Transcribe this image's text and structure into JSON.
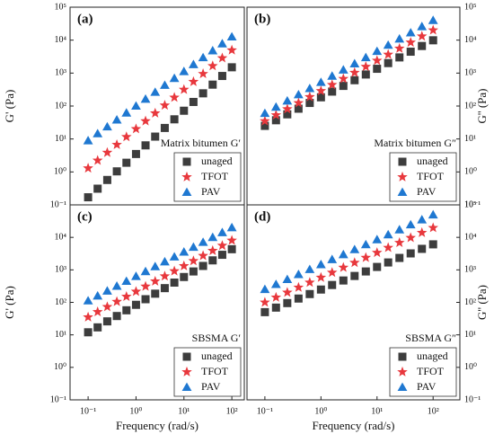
{
  "chart_data": [
    {
      "type": "scatter",
      "panel_label": "(a)",
      "annotation": "Matrix bitumen G′",
      "ylabel": "G' (Pa)",
      "yaxis_side": "left",
      "log_x": true,
      "log_y": true,
      "legend": "lower right",
      "x": [
        0.1,
        0.158,
        0.251,
        0.398,
        0.631,
        1,
        1.58,
        2.51,
        3.98,
        6.31,
        10,
        15.8,
        25.1,
        39.8,
        63.1,
        100
      ],
      "xlim": [
        0.042,
        182
      ],
      "ylim": [
        0.1,
        100000
      ],
      "yticks": [
        {
          "value": 0.1,
          "label": "10⁻¹"
        },
        {
          "value": 1,
          "label": "10⁰"
        },
        {
          "value": 10,
          "label": "10¹"
        },
        {
          "value": 100,
          "label": "10²"
        },
        {
          "value": 1000,
          "label": "10³"
        },
        {
          "value": 10000,
          "label": "10⁴"
        },
        {
          "value": 100000,
          "label": "10⁵"
        }
      ],
      "series": [
        {
          "name": "unaged",
          "color": "#3d3d3d",
          "marker": "square",
          "values": [
            0.17,
            0.31,
            0.57,
            1.04,
            1.9,
            3.5,
            6.4,
            11.8,
            21.6,
            39.5,
            72,
            133,
            243,
            446,
            817,
            1500
          ]
        },
        {
          "name": "TFOT",
          "color": "#e8383d",
          "marker": "star",
          "values": [
            1.3,
            2.23,
            3.87,
            6.71,
            11.6,
            20.2,
            35,
            60.7,
            105,
            182,
            316,
            548,
            951,
            1650,
            2860,
            4950
          ]
        },
        {
          "name": "PAV",
          "color": "#1f78d1",
          "marker": "triangle",
          "values": [
            8.9,
            14.5,
            23.4,
            38,
            61.7,
            100,
            162,
            263,
            427,
            692,
            1120,
            1820,
            2950,
            4790,
            7760,
            12600
          ]
        }
      ]
    },
    {
      "type": "scatter",
      "panel_label": "(b)",
      "annotation": "Matrix bitumen G″",
      "ylabel": "G'' (Pa)",
      "yaxis_side": "right",
      "log_x": true,
      "log_y": true,
      "legend": "lower right",
      "x": [
        0.1,
        0.158,
        0.251,
        0.398,
        0.631,
        1,
        1.58,
        2.51,
        3.98,
        6.31,
        10,
        15.8,
        25.1,
        39.8,
        63.1,
        100
      ],
      "xlim": [
        0.048,
        300
      ],
      "ylim": [
        0.1,
        100000
      ],
      "yticks": [
        {
          "value": 0.1,
          "label": "10⁻¹"
        },
        {
          "value": 1,
          "label": "10⁰"
        },
        {
          "value": 10,
          "label": "10¹"
        },
        {
          "value": 100,
          "label": "10²"
        },
        {
          "value": 1000,
          "label": "10³"
        },
        {
          "value": 10000,
          "label": "10⁴"
        },
        {
          "value": 100000,
          "label": "10⁵"
        }
      ],
      "series": [
        {
          "name": "unaged",
          "color": "#3d3d3d",
          "marker": "square",
          "values": [
            25,
            37,
            56,
            83,
            124,
            184,
            274,
            408,
            608,
            906,
            1350,
            2010,
            2990,
            4460,
            6640,
            9890
          ]
        },
        {
          "name": "TFOT",
          "color": "#e8383d",
          "marker": "star",
          "values": [
            35,
            53,
            81,
            124,
            189,
            288,
            441,
            673,
            1030,
            1570,
            2400,
            3660,
            5600,
            8550,
            13100,
            20000
          ]
        },
        {
          "name": "PAV",
          "color": "#1f78d1",
          "marker": "triangle",
          "values": [
            60,
            93,
            143,
            221,
            340,
            525,
            809,
            1250,
            1920,
            2960,
            4570,
            7050,
            10900,
            16700,
            25800,
            39800
          ]
        }
      ]
    },
    {
      "type": "scatter",
      "panel_label": "(c)",
      "annotation": "SBSMA G′",
      "ylabel": "G' (Pa)",
      "xlabel": "Frequency (rad/s)",
      "yaxis_side": "left",
      "log_x": true,
      "log_y": true,
      "legend": "lower right",
      "x": [
        0.1,
        0.158,
        0.251,
        0.398,
        0.631,
        1,
        1.58,
        2.51,
        3.98,
        6.31,
        10,
        15.8,
        25.1,
        39.8,
        63.1,
        100
      ],
      "xlim": [
        0.042,
        182
      ],
      "ylim": [
        0.1,
        100000
      ],
      "xticks": [
        {
          "value": 0.1,
          "label": "10⁻¹"
        },
        {
          "value": 1,
          "label": "10⁰"
        },
        {
          "value": 10,
          "label": "10¹"
        },
        {
          "value": 100,
          "label": "10²"
        }
      ],
      "yticks": [
        {
          "value": 0.1,
          "label": "10⁻¹"
        },
        {
          "value": 1,
          "label": "10⁰"
        },
        {
          "value": 10,
          "label": "10¹"
        },
        {
          "value": 100,
          "label": "10²"
        },
        {
          "value": 1000,
          "label": "10³"
        },
        {
          "value": 10000,
          "label": "10⁴"
        }
      ],
      "series": [
        {
          "name": "unaged",
          "color": "#3d3d3d",
          "marker": "square",
          "values": [
            12,
            17,
            26,
            38,
            57,
            84,
            125,
            185,
            274,
            406,
            603,
            893,
            1320,
            1960,
            2910,
            4320
          ]
        },
        {
          "name": "TFOT",
          "color": "#e8383d",
          "marker": "star",
          "values": [
            35,
            51,
            73,
            105,
            151,
            216,
            310,
            446,
            640,
            918,
            1320,
            1890,
            2720,
            3900,
            5600,
            8040
          ]
        },
        {
          "name": "PAV",
          "color": "#1f78d1",
          "marker": "triangle",
          "values": [
            112,
            158,
            224,
            316,
            447,
            631,
            891,
            1260,
            1780,
            2510,
            3550,
            5010,
            7080,
            10000,
            14100,
            20000
          ]
        }
      ]
    },
    {
      "type": "scatter",
      "panel_label": "(d)",
      "annotation": "SBSMA G″",
      "ylabel": "G'' (Pa)",
      "xlabel": "Frequency (rad/s)",
      "yaxis_side": "right",
      "log_x": true,
      "log_y": true,
      "legend": "lower right",
      "x": [
        0.1,
        0.158,
        0.251,
        0.398,
        0.631,
        1,
        1.58,
        2.51,
        3.98,
        6.31,
        10,
        15.8,
        25.1,
        39.8,
        63.1,
        100
      ],
      "xlim": [
        0.048,
        300
      ],
      "ylim": [
        0.1,
        100000
      ],
      "xticks": [
        {
          "value": 0.1,
          "label": "10⁻¹"
        },
        {
          "value": 1,
          "label": "10⁰"
        },
        {
          "value": 10,
          "label": "10¹"
        },
        {
          "value": 100,
          "label": "10²"
        }
      ],
      "yticks": [
        {
          "value": 0.1,
          "label": "10⁻¹"
        },
        {
          "value": 1,
          "label": "10⁰"
        },
        {
          "value": 10,
          "label": "10¹"
        },
        {
          "value": 100,
          "label": "10²"
        },
        {
          "value": 1000,
          "label": "10³"
        },
        {
          "value": 10000,
          "label": "10⁴"
        },
        {
          "value": 100000,
          "label": "10⁵"
        }
      ],
      "series": [
        {
          "name": "unaged",
          "color": "#3d3d3d",
          "marker": "square",
          "values": [
            50,
            69,
            95,
            131,
            180,
            248,
            342,
            471,
            649,
            893,
            1230,
            1690,
            2330,
            3210,
            4430,
            6100
          ]
        },
        {
          "name": "TFOT",
          "color": "#e8383d",
          "marker": "star",
          "values": [
            100,
            142,
            202,
            288,
            409,
            582,
            828,
            1180,
            1670,
            2380,
            3390,
            4820,
            6850,
            9750,
            13900,
            19700
          ]
        },
        {
          "name": "PAV",
          "color": "#1f78d1",
          "marker": "triangle",
          "values": [
            251,
            357,
            508,
            723,
            1030,
            1460,
            2080,
            2960,
            4210,
            5980,
            8510,
            12100,
            17200,
            24500,
            34800,
            49500
          ]
        }
      ]
    }
  ]
}
